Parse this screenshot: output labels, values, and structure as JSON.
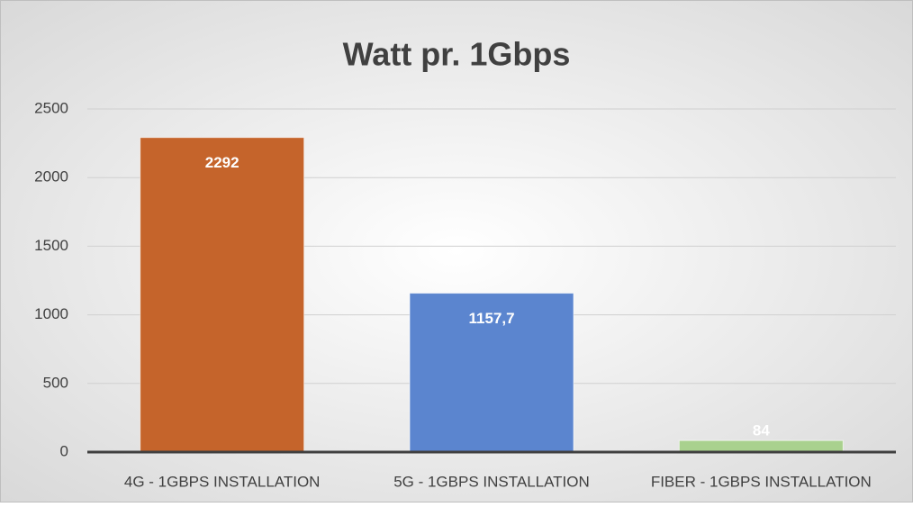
{
  "chart_data": {
    "type": "bar",
    "title": "Watt pr. 1Gbps",
    "categories": [
      "4G - 1GBPS INSTALLATION",
      "5G - 1GBPS INSTALLATION",
      "FIBER - 1GBPS INSTALLATION"
    ],
    "values": [
      2292,
      1157.7,
      84
    ],
    "value_labels": [
      "2292",
      "1157,7",
      "84"
    ],
    "colors": [
      "#c5642b",
      "#5b85cf",
      "#a9d18e"
    ],
    "ylim": [
      0,
      2500
    ],
    "yticks": [
      0,
      500,
      1000,
      1500,
      2000,
      2500
    ],
    "grid": true
  }
}
